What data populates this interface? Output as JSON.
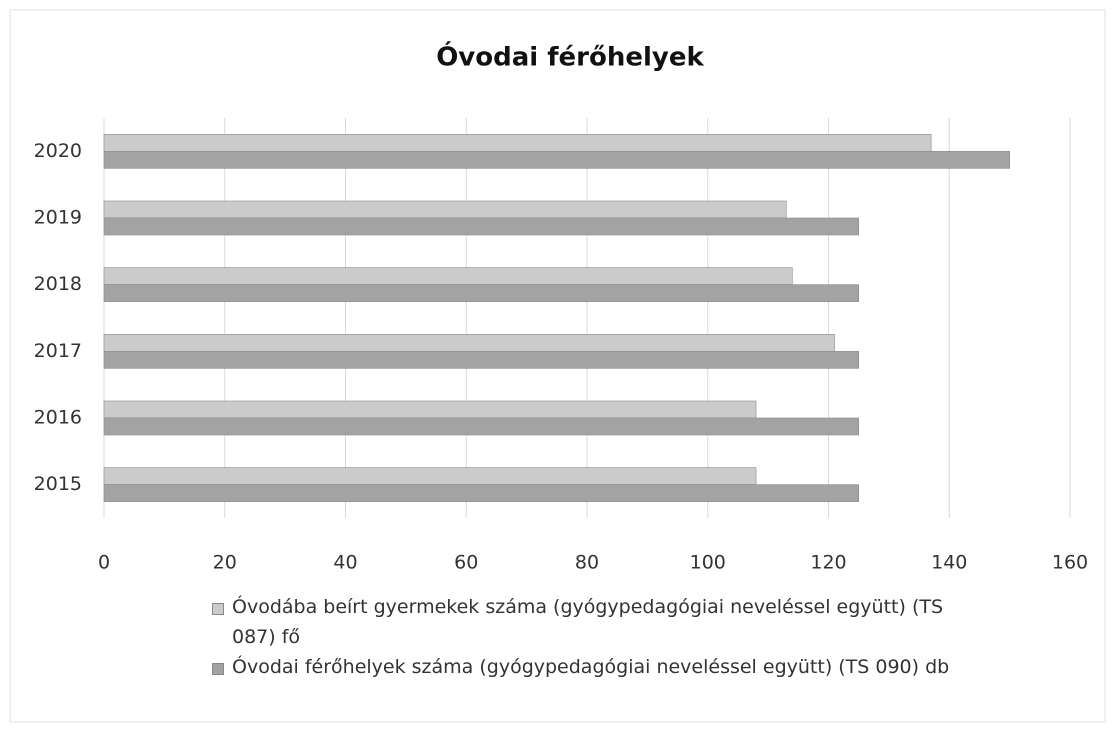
{
  "chart_data": {
    "type": "hbar",
    "title": "Óvodai férőhelyek",
    "categories": [
      "2015",
      "2016",
      "2017",
      "2018",
      "2019",
      "2020"
    ],
    "series": [
      {
        "name": "Óvodába beírt gyermekek száma (gyógypedagógiai neveléssel együtt) (TS 087) fő",
        "color": "#cbcbcb",
        "values": [
          108,
          108,
          121,
          114,
          113,
          137
        ]
      },
      {
        "name": "Óvodai férőhelyek száma (gyógypedagógiai neveléssel együtt) (TS 090) db",
        "color": "#a3a3a3",
        "values": [
          125,
          125,
          125,
          125,
          125,
          150
        ]
      }
    ],
    "xlim": [
      0,
      160
    ],
    "xticks": [
      0,
      20,
      40,
      60,
      80,
      100,
      120,
      140,
      160
    ],
    "grid": true
  }
}
